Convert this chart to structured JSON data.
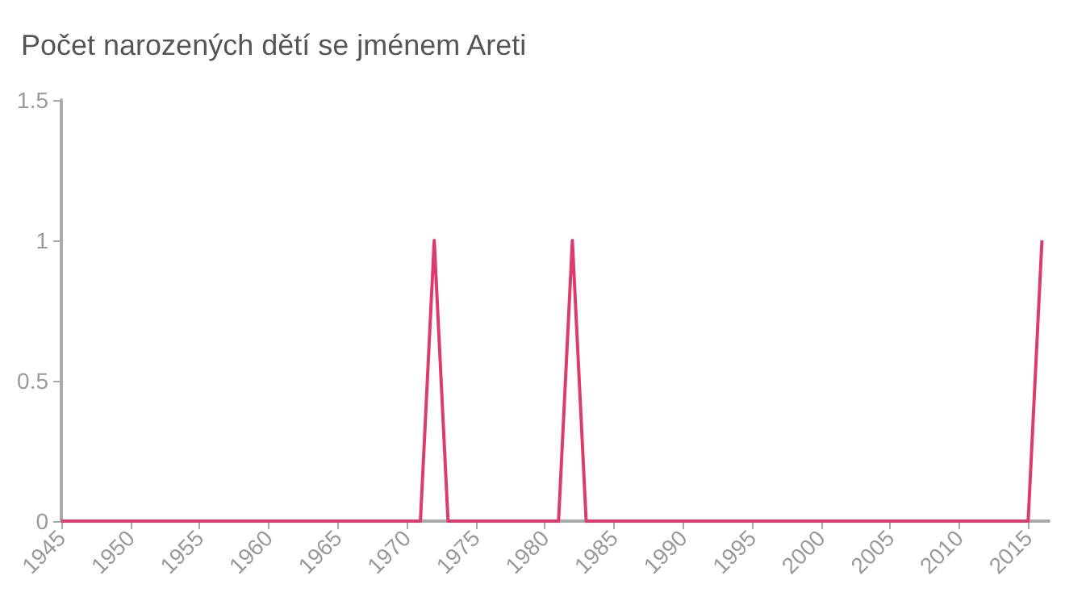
{
  "chart_data": {
    "type": "line",
    "title": "Počet narozených dětí se jménem Areti",
    "x": [
      1945,
      1971,
      1972,
      1973,
      1981,
      1982,
      1983,
      2015,
      2016
    ],
    "series": [
      {
        "color": "#dc3c6c",
        "values": [
          0,
          0,
          1,
          0,
          0,
          1,
          0,
          0,
          1
        ]
      }
    ],
    "xlim": [
      1945,
      2016.5
    ],
    "xticks": [
      1945,
      1950,
      1955,
      1960,
      1965,
      1970,
      1975,
      1980,
      1985,
      1990,
      1995,
      2000,
      2005,
      2010,
      2015
    ],
    "ylim": [
      0,
      1.5
    ],
    "yticks": [
      0,
      0.5,
      1,
      1.5
    ],
    "grid": false,
    "marker": "none",
    "line_style": "solid"
  }
}
